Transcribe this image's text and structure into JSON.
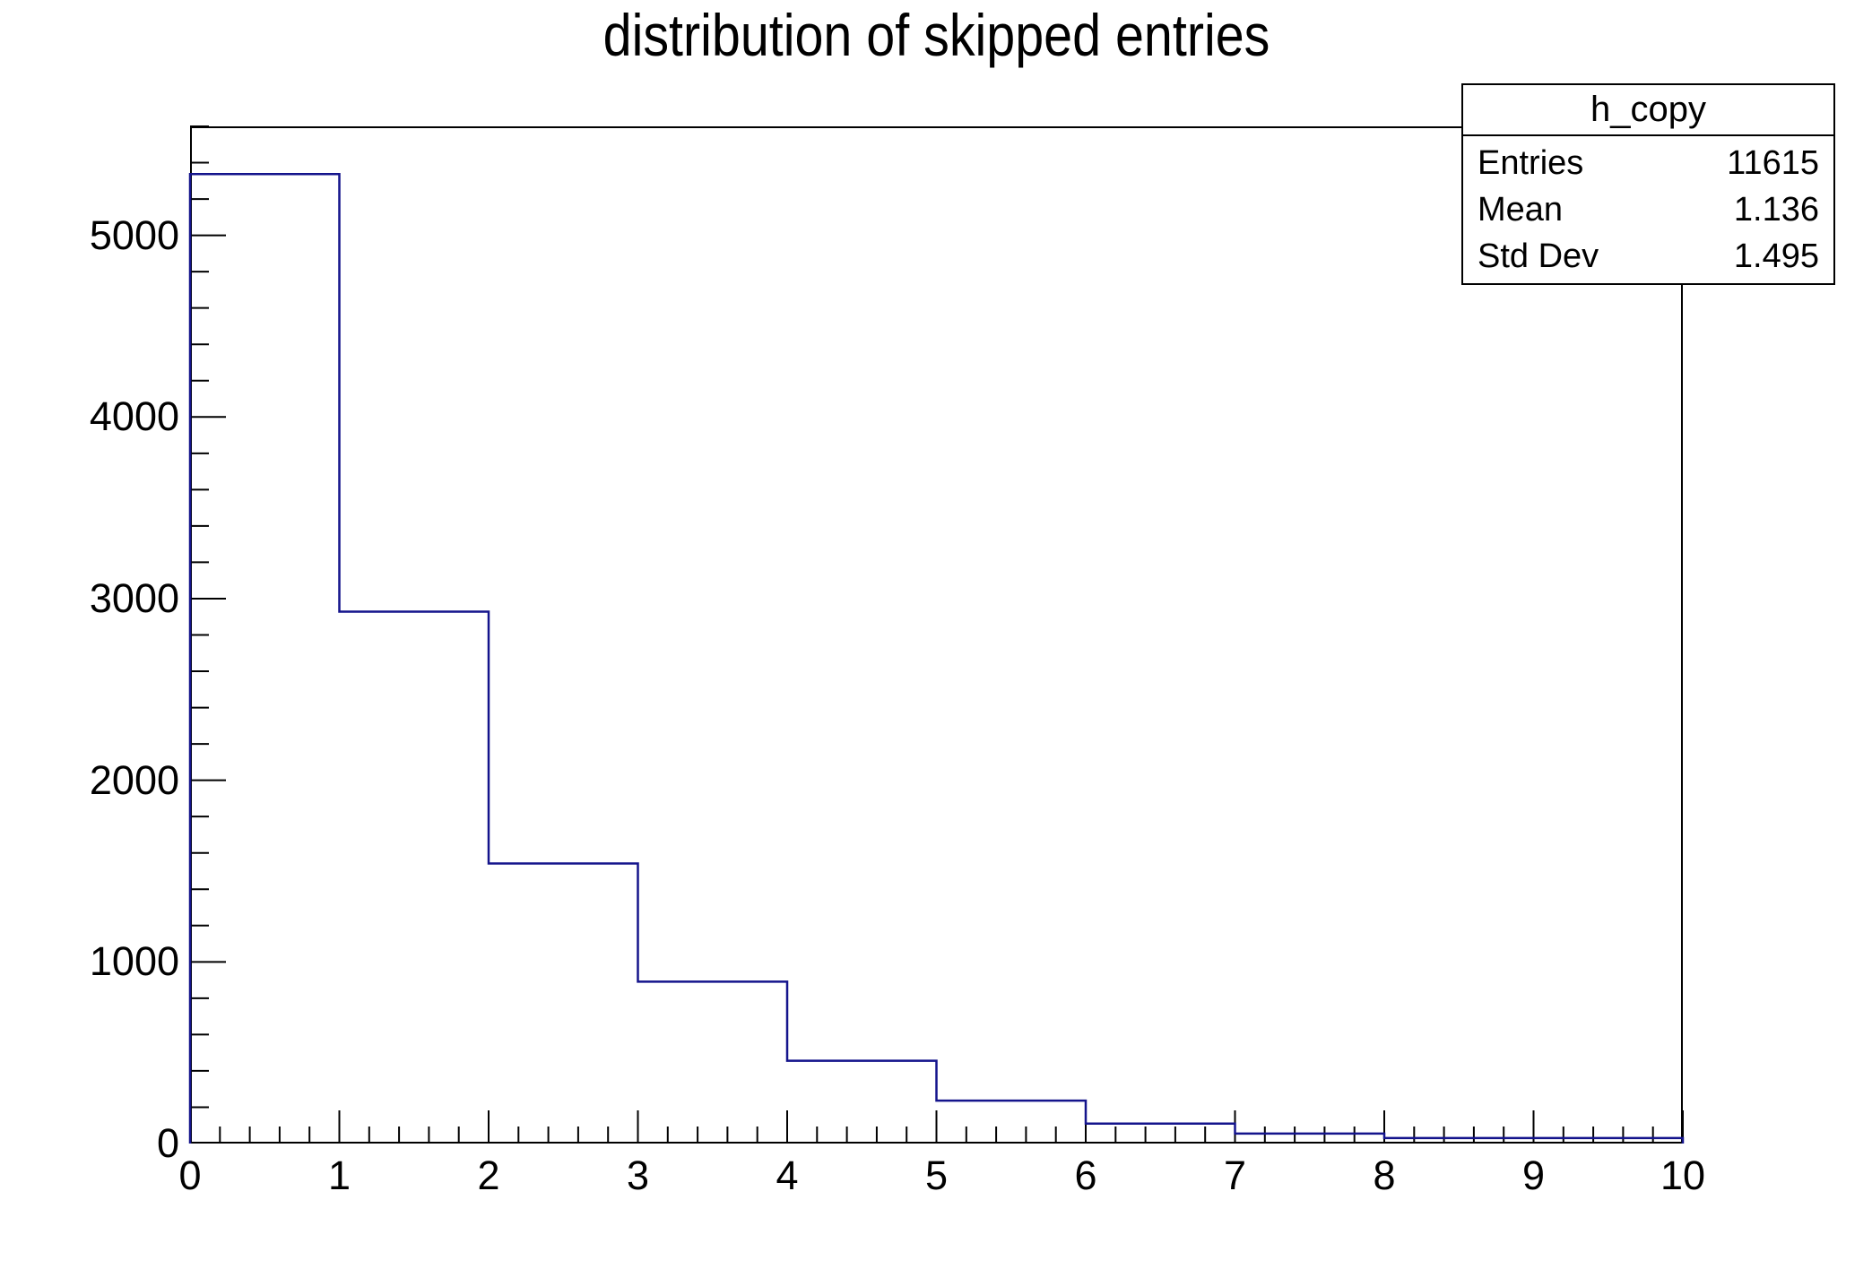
{
  "title": "distribution of skipped entries",
  "stats_box": {
    "header": "h_copy",
    "rows": [
      {
        "label": "Entries",
        "value": "11615"
      },
      {
        "label": "Mean",
        "value": "1.136"
      },
      {
        "label": "Std Dev",
        "value": "1.495"
      }
    ]
  },
  "axes": {
    "x_tick_labels": [
      "0",
      "1",
      "2",
      "3",
      "4",
      "5",
      "6",
      "7",
      "8",
      "9",
      "10"
    ],
    "y_tick_labels": [
      "0",
      "1000",
      "2000",
      "3000",
      "4000",
      "5000"
    ]
  },
  "colors": {
    "histogram_line": "#14148C",
    "axis": "#000000",
    "background": "#ffffff",
    "text": "#000000"
  },
  "chart_data": {
    "type": "bar",
    "histogram": true,
    "title": "distribution of skipped entries",
    "xlabel": "",
    "ylabel": "",
    "bin_edges": [
      0,
      1,
      2,
      3,
      4,
      5,
      6,
      7,
      8,
      9,
      10
    ],
    "values": [
      5337,
      2928,
      1542,
      891,
      456,
      236,
      110,
      55,
      30,
      30
    ],
    "xlim": [
      0,
      10
    ],
    "ylim": [
      0,
      5600
    ],
    "x_minor_step": 0.2,
    "y_major_step": 1000,
    "y_minor_step": 200,
    "grid": false,
    "legend_position": "none",
    "stats": {
      "name": "h_copy",
      "entries": 11615,
      "mean": 1.136,
      "std_dev": 1.495
    }
  }
}
